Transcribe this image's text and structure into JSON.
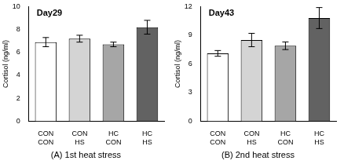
{
  "chart_data": [
    {
      "type": "bar",
      "title": "Day29",
      "subtitle": "(A) 1st heat stress",
      "y_label": "Cortisol (ng/ml)",
      "categories": [
        [
          "CON",
          "CON"
        ],
        [
          "CON",
          "HS"
        ],
        [
          "HC",
          "CON"
        ],
        [
          "HC",
          "HS"
        ]
      ],
      "values": [
        6.9,
        7.2,
        6.7,
        8.2
      ],
      "errors": [
        0.4,
        0.3,
        0.2,
        0.6
      ],
      "colors": [
        "#ffffff",
        "#d4d4d4",
        "#a6a6a6",
        "#626262"
      ],
      "ylim": [
        0,
        10
      ],
      "yticks": [
        0,
        2,
        4,
        6,
        8,
        10
      ],
      "grid": false
    },
    {
      "type": "bar",
      "title": "Day43",
      "subtitle": "(B) 2nd heat stress",
      "y_label": "Cortisol (ng/ml)",
      "categories": [
        [
          "CON",
          "CON"
        ],
        [
          "CON",
          "HS"
        ],
        [
          "HC",
          "CON"
        ],
        [
          "HC",
          "HS"
        ]
      ],
      "values": [
        7.1,
        8.5,
        7.9,
        10.8
      ],
      "errors": [
        0.3,
        0.7,
        0.4,
        1.1
      ],
      "colors": [
        "#ffffff",
        "#d4d4d4",
        "#a6a6a6",
        "#626262"
      ],
      "ylim": [
        0,
        12
      ],
      "yticks": [
        0,
        3,
        6,
        9,
        12
      ],
      "grid": false
    }
  ]
}
